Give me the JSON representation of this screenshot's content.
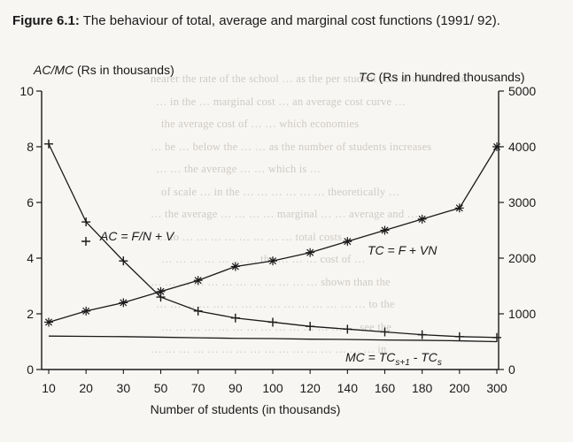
{
  "caption": {
    "lead": "Figure 6.1:",
    "text": "The behaviour of total, average and marginal cost functions (1991/ 92)."
  },
  "background_text": [
    "nearer the rate of the school … as the per student cost at a lower rate",
    "… in the … marginal cost … an average cost curve …",
    "the average cost of … … which economies",
    "… be … below the … … as the number of students increases",
    "… … the average … … which is …",
    "of scale … in the … … … … … … theoretically …",
    "… the average … … … … marginal … … average and …",
    "… to … … … … … … … … total costs …",
    "… … … … … … … the … … … cost of …",
    "… … … … … … … … … … … … shown than the",
    "… … … … … … … … … … … … … … … to the",
    "… … … … … … … … … … … … … … see the",
    "… … … … … … … … … … … … … … … … in"
  ],
  "left_axis_title": {
    "italic": "AC/MC",
    "rest": " (Rs in thousands)"
  },
  "right_axis_title": {
    "italic": "TC",
    "rest": " (Rs in hundred thousands)"
  },
  "chart_data": {
    "type": "line",
    "xlabel": "Number of students (in thousands)",
    "categories": [
      "10",
      "20",
      "30",
      "50",
      "70",
      "90",
      "100",
      "120",
      "140",
      "160",
      "180",
      "200",
      "300"
    ],
    "left_axis": {
      "ylim": [
        0,
        10
      ],
      "ticks": [
        "0",
        "2",
        "4",
        "6",
        "8",
        "10"
      ]
    },
    "right_axis": {
      "ylim": [
        0,
        5000
      ],
      "ticks": [
        "0",
        "1000",
        "2000",
        "3000",
        "4000",
        "5000"
      ]
    },
    "series": [
      {
        "name": "TC = F + VN",
        "axis": "right",
        "marker": "asterisk",
        "values": [
          850,
          1050,
          1200,
          1400,
          1600,
          1850,
          1950,
          2100,
          2300,
          2500,
          2700,
          2900,
          4000
        ]
      },
      {
        "name": "AC = F/N + V",
        "axis": "left",
        "marker": "plus",
        "values": [
          8.1,
          5.3,
          3.9,
          2.6,
          2.1,
          1.85,
          1.7,
          1.55,
          1.45,
          1.35,
          1.25,
          1.18,
          1.15
        ]
      },
      {
        "name": "MC = TCs+1 - TCs",
        "axis": "left",
        "marker": "none",
        "values": [
          1.2,
          1.19,
          1.18,
          1.16,
          1.14,
          1.12,
          1.11,
          1.09,
          1.08,
          1.06,
          1.05,
          1.03,
          1.0
        ]
      }
    ],
    "labels": {
      "ac": {
        "lhs": "AC = F/N + V"
      },
      "tc": {
        "lhs": "TC = F + VN"
      },
      "mc": {
        "main": "MC = TC",
        "sub1": "s+1",
        "mid": " - TC",
        "sub2": "s"
      }
    },
    "colors": {
      "ink": "#1a1a1a",
      "paper": "#f7f6f3"
    }
  }
}
